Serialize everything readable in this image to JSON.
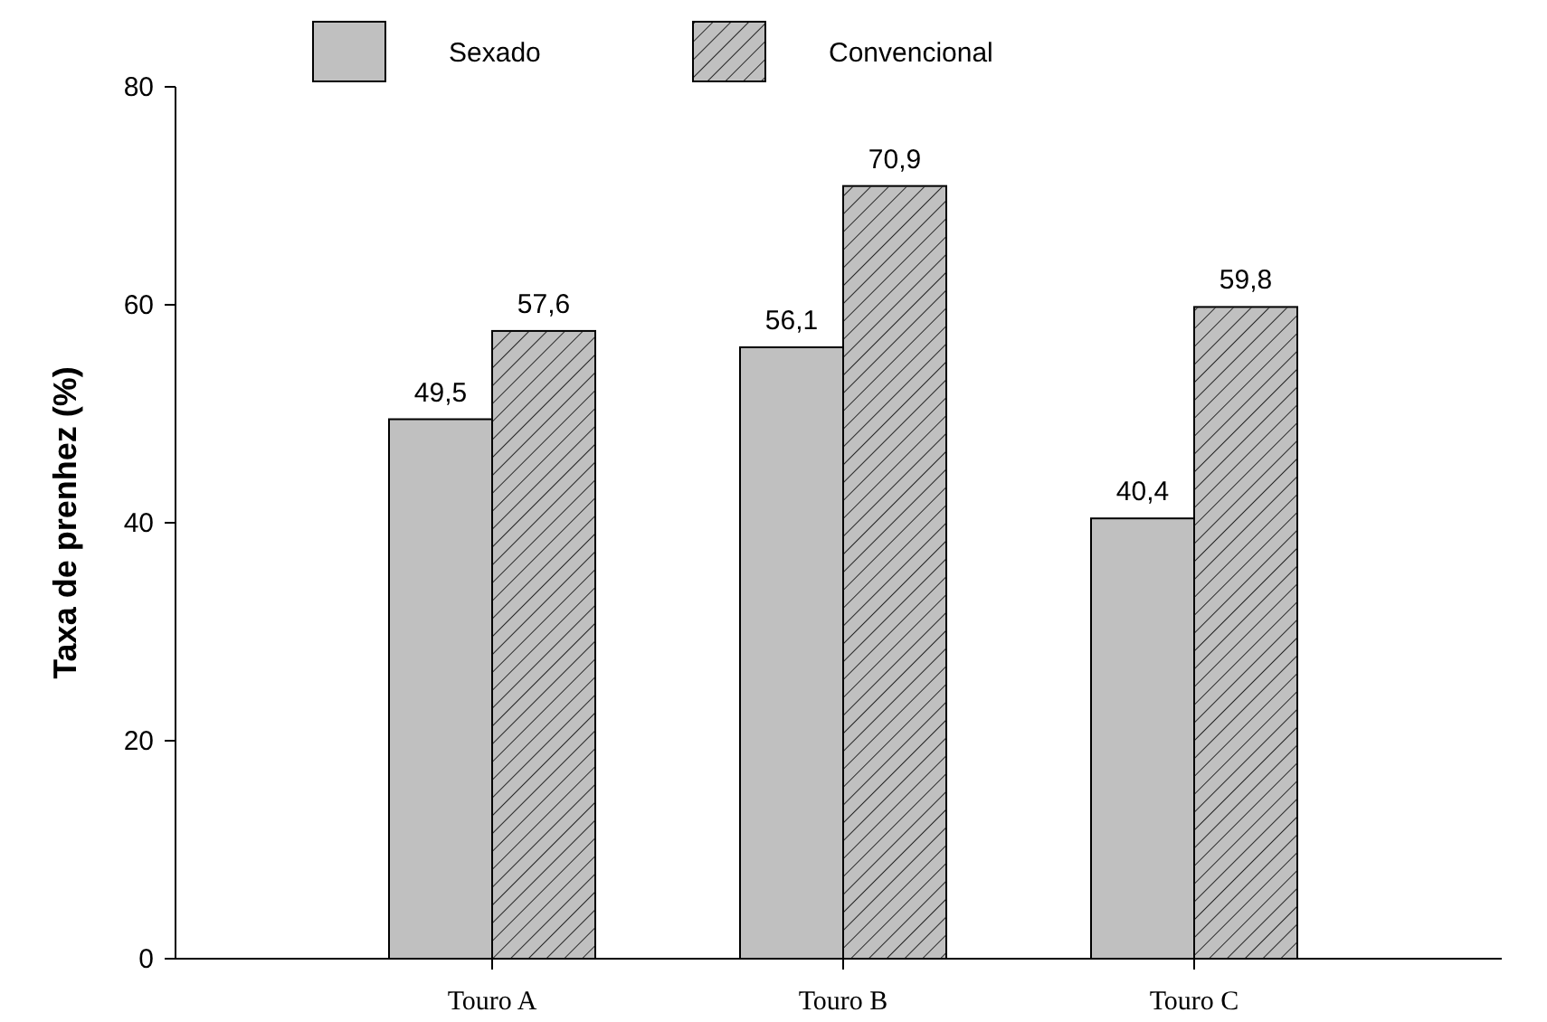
{
  "chart_data": {
    "type": "bar",
    "ylabel": "Taxa de prenhez (%)",
    "categories": [
      "Touro A",
      "Touro B",
      "Touro C"
    ],
    "series": [
      {
        "name": "Sexado",
        "color": "#c0c0c0",
        "values": [
          49.5,
          56.1,
          40.4
        ],
        "value_labels": [
          "49,5",
          "56,1",
          "40,4"
        ]
      },
      {
        "name": "Convencional",
        "color": "#c0c0c0",
        "values": [
          57.6,
          70.9,
          59.8
        ],
        "value_labels": [
          "57,6",
          "70,9",
          "59,8"
        ]
      }
    ],
    "ylim": [
      0,
      80
    ],
    "yticks": [
      0,
      20,
      40,
      60,
      80
    ],
    "legend": "top",
    "grid": false
  }
}
